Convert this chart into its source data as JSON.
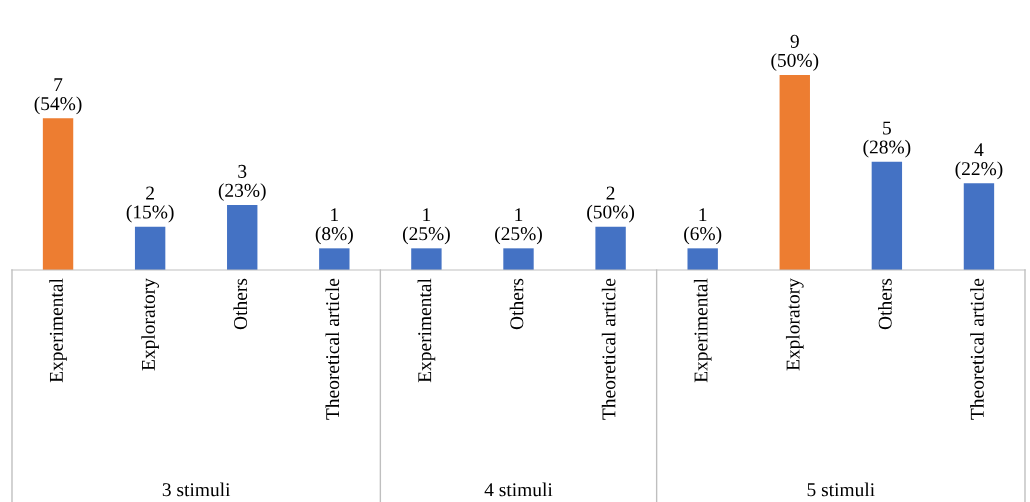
{
  "chart_data": {
    "type": "bar",
    "categories": [
      "Experimental",
      "Exploratory",
      "Others",
      "Theoretical article",
      "Experimental",
      "Others",
      "Theoretical article",
      "Experimental",
      "Exploratory",
      "Others",
      "Theoretical article"
    ],
    "values": [
      7,
      2,
      3,
      1,
      1,
      1,
      2,
      1,
      9,
      5,
      4
    ],
    "colors": [
      "#ed7d31",
      "#4472c4",
      "#4472c4",
      "#4472c4",
      "#4472c4",
      "#4472c4",
      "#4472c4",
      "#4472c4",
      "#ed7d31",
      "#4472c4",
      "#4472c4"
    ],
    "value_labels": [
      "7\n(54%)",
      "2\n(15%)",
      "3\n(23%)",
      "1\n(8%)",
      "1\n(25%)",
      "1\n(25%)",
      "2\n(50%)",
      "1\n(6%)",
      "9\n(50%)",
      "5\n(28%)",
      "4\n(22%)"
    ],
    "annotations": [
      "3 stimuli",
      "4 stimuli",
      "5 stimuli"
    ]
  }
}
